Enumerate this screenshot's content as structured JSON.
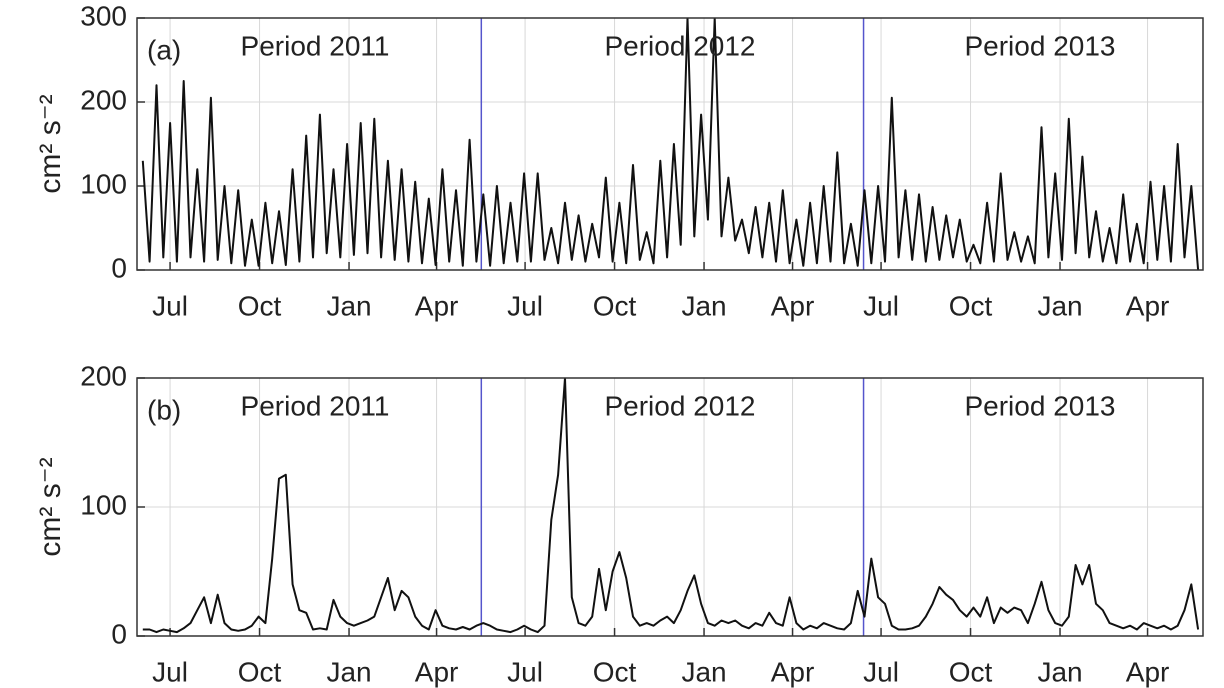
{
  "chart_data": [
    {
      "type": "line",
      "panel_label": "(a)",
      "ylabel": "cm² s⁻²",
      "annotations": [
        "Period 2011",
        "Period 2012",
        "Period 2013"
      ],
      "vlines": [
        320,
        713
      ],
      "vline_color": "#5555cc",
      "grid": true,
      "xlim": [
        -34,
        1062
      ],
      "xticks": [
        {
          "value": 0,
          "label": "Jul"
        },
        {
          "value": 92,
          "label": "Oct"
        },
        {
          "value": 184,
          "label": "Jan"
        },
        {
          "value": 274,
          "label": "Apr"
        },
        {
          "value": 365,
          "label": "Jul"
        },
        {
          "value": 457,
          "label": "Oct"
        },
        {
          "value": 549,
          "label": "Jan"
        },
        {
          "value": 640,
          "label": "Apr"
        },
        {
          "value": 731,
          "label": "Jul"
        },
        {
          "value": 823,
          "label": "Oct"
        },
        {
          "value": 915,
          "label": "Jan"
        },
        {
          "value": 1005,
          "label": "Apr"
        }
      ],
      "ylim": [
        0,
        300
      ],
      "yticks": [
        0,
        100,
        200,
        300
      ],
      "x": [
        -28,
        -21,
        -14,
        -7,
        0,
        7,
        14,
        21,
        28,
        35,
        42,
        49,
        56,
        63,
        70,
        77,
        84,
        91,
        98,
        105,
        112,
        119,
        126,
        133,
        140,
        147,
        154,
        161,
        168,
        175,
        182,
        189,
        196,
        203,
        210,
        217,
        224,
        231,
        238,
        245,
        252,
        259,
        266,
        273,
        280,
        287,
        294,
        301,
        308,
        315,
        322,
        329,
        336,
        343,
        350,
        357,
        364,
        371,
        378,
        385,
        392,
        399,
        406,
        413,
        420,
        427,
        434,
        441,
        448,
        455,
        462,
        469,
        476,
        483,
        490,
        497,
        504,
        511,
        518,
        525,
        532,
        539,
        546,
        553,
        560,
        567,
        574,
        581,
        588,
        595,
        602,
        609,
        616,
        623,
        630,
        637,
        644,
        651,
        658,
        665,
        672,
        679,
        686,
        693,
        700,
        707,
        714,
        721,
        728,
        735,
        742,
        749,
        756,
        763,
        770,
        777,
        784,
        791,
        798,
        805,
        812,
        819,
        826,
        833,
        840,
        847,
        854,
        861,
        868,
        875,
        882,
        889,
        896,
        903,
        910,
        917,
        924,
        931,
        938,
        945,
        952,
        959,
        966,
        973,
        980,
        987,
        994,
        1001,
        1008,
        1015,
        1022,
        1029,
        1036,
        1043,
        1050,
        1057
      ],
      "series": [
        {
          "color": "#111111",
          "values": [
            130,
            10,
            220,
            15,
            175,
            10,
            225,
            15,
            120,
            10,
            205,
            12,
            100,
            8,
            95,
            5,
            60,
            5,
            80,
            8,
            70,
            6,
            120,
            10,
            160,
            15,
            185,
            20,
            120,
            15,
            150,
            18,
            175,
            20,
            180,
            15,
            130,
            12,
            120,
            10,
            105,
            8,
            85,
            6,
            120,
            10,
            95,
            5,
            155,
            10,
            90,
            5,
            100,
            8,
            80,
            10,
            115,
            10,
            115,
            12,
            50,
            8,
            80,
            12,
            65,
            10,
            55,
            15,
            110,
            10,
            80,
            8,
            125,
            12,
            45,
            8,
            130,
            15,
            150,
            30,
            300,
            40,
            185,
            60,
            300,
            40,
            110,
            35,
            60,
            20,
            75,
            15,
            80,
            10,
            95,
            8,
            60,
            5,
            80,
            8,
            100,
            10,
            140,
            8,
            55,
            5,
            95,
            8,
            100,
            10,
            205,
            15,
            95,
            12,
            90,
            10,
            75,
            12,
            65,
            15,
            60,
            10,
            30,
            8,
            80,
            10,
            115,
            12,
            45,
            10,
            40,
            8,
            170,
            15,
            115,
            12,
            180,
            20,
            135,
            15,
            70,
            10,
            50,
            8,
            90,
            10,
            55,
            8,
            105,
            12,
            100,
            10,
            150,
            15,
            100,
            0
          ]
        }
      ]
    },
    {
      "type": "line",
      "panel_label": "(b)",
      "ylabel": "cm² s⁻²",
      "annotations": [
        "Period 2011",
        "Period 2012",
        "Period 2013"
      ],
      "vlines": [
        320,
        713
      ],
      "vline_color": "#5555cc",
      "grid": true,
      "xlim": [
        -34,
        1062
      ],
      "xticks": [
        {
          "value": 0,
          "label": "Jul"
        },
        {
          "value": 92,
          "label": "Oct"
        },
        {
          "value": 184,
          "label": "Jan"
        },
        {
          "value": 274,
          "label": "Apr"
        },
        {
          "value": 365,
          "label": "Jul"
        },
        {
          "value": 457,
          "label": "Oct"
        },
        {
          "value": 549,
          "label": "Jan"
        },
        {
          "value": 640,
          "label": "Apr"
        },
        {
          "value": 731,
          "label": "Jul"
        },
        {
          "value": 823,
          "label": "Oct"
        },
        {
          "value": 915,
          "label": "Jan"
        },
        {
          "value": 1005,
          "label": "Apr"
        }
      ],
      "ylim": [
        0,
        200
      ],
      "yticks": [
        0,
        100,
        200
      ],
      "x": [
        -28,
        -21,
        -14,
        -7,
        0,
        7,
        14,
        21,
        28,
        35,
        42,
        49,
        56,
        63,
        70,
        77,
        84,
        91,
        98,
        105,
        112,
        119,
        126,
        133,
        140,
        147,
        154,
        161,
        168,
        175,
        182,
        189,
        196,
        203,
        210,
        217,
        224,
        231,
        238,
        245,
        252,
        259,
        266,
        273,
        280,
        287,
        294,
        301,
        308,
        315,
        322,
        329,
        336,
        343,
        350,
        357,
        364,
        371,
        378,
        385,
        392,
        399,
        406,
        413,
        420,
        427,
        434,
        441,
        448,
        455,
        462,
        469,
        476,
        483,
        490,
        497,
        504,
        511,
        518,
        525,
        532,
        539,
        546,
        553,
        560,
        567,
        574,
        581,
        588,
        595,
        602,
        609,
        616,
        623,
        630,
        637,
        644,
        651,
        658,
        665,
        672,
        679,
        686,
        693,
        700,
        707,
        714,
        721,
        728,
        735,
        742,
        749,
        756,
        763,
        770,
        777,
        784,
        791,
        798,
        805,
        812,
        819,
        826,
        833,
        840,
        847,
        854,
        861,
        868,
        875,
        882,
        889,
        896,
        903,
        910,
        917,
        924,
        931,
        938,
        945,
        952,
        959,
        966,
        973,
        980,
        987,
        994,
        1001,
        1008,
        1015,
        1022,
        1029,
        1036,
        1043,
        1050,
        1057
      ],
      "series": [
        {
          "color": "#111111",
          "values": [
            5,
            5,
            3,
            5,
            4,
            3,
            6,
            10,
            20,
            30,
            10,
            32,
            10,
            5,
            4,
            5,
            8,
            15,
            10,
            60,
            122,
            125,
            40,
            20,
            18,
            5,
            6,
            5,
            28,
            15,
            10,
            8,
            10,
            12,
            15,
            30,
            45,
            20,
            35,
            30,
            15,
            8,
            5,
            20,
            8,
            6,
            5,
            7,
            5,
            8,
            10,
            8,
            5,
            4,
            3,
            5,
            8,
            5,
            3,
            8,
            90,
            125,
            200,
            30,
            10,
            8,
            15,
            52,
            20,
            50,
            65,
            45,
            15,
            8,
            10,
            8,
            12,
            15,
            10,
            20,
            35,
            47,
            25,
            10,
            8,
            12,
            10,
            12,
            8,
            6,
            10,
            8,
            18,
            10,
            8,
            30,
            10,
            5,
            8,
            6,
            10,
            8,
            6,
            5,
            10,
            35,
            15,
            60,
            30,
            25,
            8,
            5,
            5,
            6,
            8,
            15,
            25,
            38,
            32,
            28,
            20,
            15,
            22,
            15,
            30,
            10,
            22,
            18,
            22,
            20,
            10,
            25,
            42,
            20,
            10,
            8,
            15,
            55,
            40,
            55,
            25,
            20,
            10,
            8,
            6,
            8,
            5,
            10,
            8,
            6,
            8,
            5,
            8,
            20,
            40,
            5
          ]
        }
      ]
    }
  ]
}
